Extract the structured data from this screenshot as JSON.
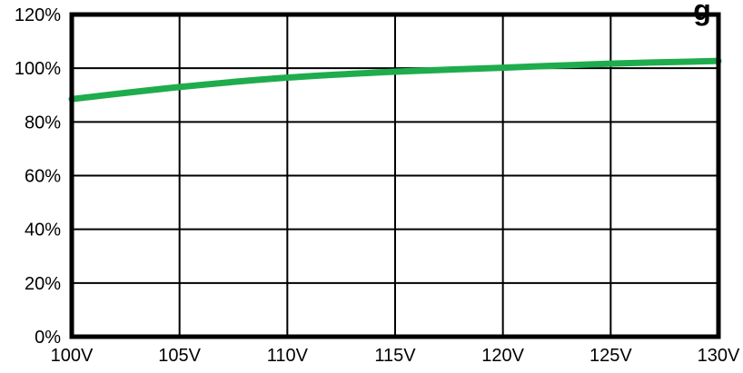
{
  "chart_data": {
    "type": "line",
    "title_visible_fragment": "g",
    "x": [
      "100V",
      "105V",
      "110V",
      "115V",
      "120V",
      "125V",
      "130V"
    ],
    "xlim": [
      100,
      130
    ],
    "ylim": [
      0,
      120
    ],
    "y_ticks": [
      "0%",
      "20%",
      "40%",
      "60%",
      "80%",
      "100%",
      "120%"
    ],
    "grid": true,
    "series": [
      {
        "color": "#1fac4d",
        "points": [
          [
            100,
            88.5
          ],
          [
            105,
            93.0
          ],
          [
            110,
            96.5
          ],
          [
            115,
            98.7
          ],
          [
            120,
            100.2
          ],
          [
            125,
            101.7
          ],
          [
            130,
            102.7
          ]
        ]
      }
    ],
    "colors": {
      "axes": "#000000",
      "background": "#ffffff"
    }
  }
}
